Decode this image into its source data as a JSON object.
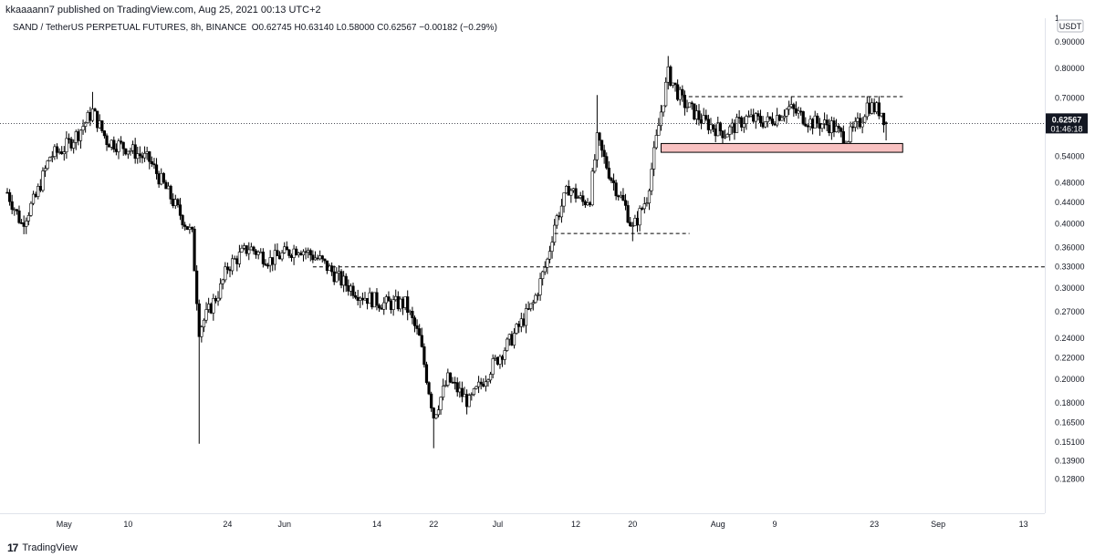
{
  "header": {
    "publisher_line": "kkaaaann7 published on TradingView.com, Aug 25, 2021 00:13 UTC+2",
    "symbol": "SAND / TetherUS PERPETUAL FUTURES, 8h, BINANCE",
    "open": "O0.62745",
    "high": "H0.63140",
    "low": "L0.58000",
    "close": "C0.62567",
    "change": "−0.00182 (−0.29%)"
  },
  "footer": {
    "brand_mark": "17",
    "brand_name": "TradingView"
  },
  "colors": {
    "candle": "#000000",
    "zone_fill": "#f8c1c1",
    "zone_border": "#000000",
    "grid": "#f0f3fa",
    "last_price_bg": "#131722"
  },
  "chart_data": {
    "type": "candlestick",
    "currency_label": "USDT",
    "y_scale": "log",
    "ylim": [
      0.11,
      1.0
    ],
    "y_ticks": [
      "1",
      "0.90000",
      "0.80000",
      "0.70000",
      "0.62567",
      "0.54000",
      "0.48000",
      "0.44000",
      "0.40000",
      "0.36000",
      "0.33000",
      "0.30000",
      "0.27000",
      "0.24000",
      "0.22000",
      "0.20000",
      "0.18000",
      "0.16500",
      "0.15100",
      "0.13900",
      "0.12800"
    ],
    "x_ticks": [
      "May",
      "10",
      "24",
      "Jun",
      "14",
      "22",
      "Jul",
      "12",
      "20",
      "Aug",
      "9",
      "23",
      "Sep",
      "13"
    ],
    "last_price": "0.62567",
    "countdown": "01:46:18",
    "path": [
      [
        "2021-04-23",
        0.46
      ],
      [
        "2021-04-25",
        0.4
      ],
      [
        "2021-04-27",
        0.45
      ],
      [
        "2021-04-29",
        0.54
      ],
      [
        "2021-05-01",
        0.56
      ],
      [
        "2021-05-03",
        0.6
      ],
      [
        "2021-05-05",
        0.66
      ],
      [
        "2021-05-07",
        0.58
      ],
      [
        "2021-05-10",
        0.56
      ],
      [
        "2021-05-13",
        0.53
      ],
      [
        "2021-05-16",
        0.45
      ],
      [
        "2021-05-19",
        0.38
      ],
      [
        "2021-05-20",
        0.25
      ],
      [
        "2021-05-23",
        0.3
      ],
      [
        "2021-05-24",
        0.33
      ],
      [
        "2021-05-27",
        0.36
      ],
      [
        "2021-05-30",
        0.34
      ],
      [
        "2021-06-03",
        0.36
      ],
      [
        "2021-06-06",
        0.34
      ],
      [
        "2021-06-09",
        0.31
      ],
      [
        "2021-06-12",
        0.29
      ],
      [
        "2021-06-15",
        0.28
      ],
      [
        "2021-06-18",
        0.28
      ],
      [
        "2021-06-20",
        0.24
      ],
      [
        "2021-06-22",
        0.17
      ],
      [
        "2021-06-24",
        0.2
      ],
      [
        "2021-06-27",
        0.18
      ],
      [
        "2021-06-30",
        0.21
      ],
      [
        "2021-07-03",
        0.24
      ],
      [
        "2021-07-06",
        0.28
      ],
      [
        "2021-07-08",
        0.34
      ],
      [
        "2021-07-09",
        0.4
      ],
      [
        "2021-07-11",
        0.47
      ],
      [
        "2021-07-13",
        0.44
      ],
      [
        "2021-07-14",
        0.45
      ],
      [
        "2021-07-15",
        0.58
      ],
      [
        "2021-07-17",
        0.49
      ],
      [
        "2021-07-19",
        0.43
      ],
      [
        "2021-07-20",
        0.39
      ],
      [
        "2021-07-22",
        0.45
      ],
      [
        "2021-07-24",
        0.66
      ],
      [
        "2021-07-25",
        0.78
      ],
      [
        "2021-07-27",
        0.69
      ],
      [
        "2021-07-30",
        0.63
      ],
      [
        "2021-08-02",
        0.6
      ],
      [
        "2021-08-05",
        0.64
      ],
      [
        "2021-08-08",
        0.63
      ],
      [
        "2021-08-11",
        0.67
      ],
      [
        "2021-08-14",
        0.63
      ],
      [
        "2021-08-17",
        0.62
      ],
      [
        "2021-08-19",
        0.58
      ],
      [
        "2021-08-21",
        0.63
      ],
      [
        "2021-08-22",
        0.68
      ],
      [
        "2021-08-24",
        0.66
      ],
      [
        "2021-08-24T16",
        0.62567
      ]
    ],
    "lows": [
      [
        "2021-05-20",
        0.15
      ],
      [
        "2021-06-22",
        0.147
      ],
      [
        "2021-07-20",
        0.37
      ]
    ],
    "highs": [
      [
        "2021-05-05",
        0.72
      ],
      [
        "2021-07-25",
        0.845
      ],
      [
        "2021-07-15",
        0.71
      ]
    ],
    "levels": [
      {
        "price": 0.33,
        "from": "2021-06-05",
        "to": "end"
      },
      {
        "price": 0.383,
        "from": "2021-07-09",
        "to": "2021-07-28"
      },
      {
        "price": 0.705,
        "from": "2021-07-27",
        "to": "2021-08-27"
      }
    ],
    "zones": [
      {
        "top": 0.572,
        "bottom": 0.55,
        "from": "2021-07-24",
        "to": "2021-08-27"
      }
    ],
    "grid": false
  }
}
